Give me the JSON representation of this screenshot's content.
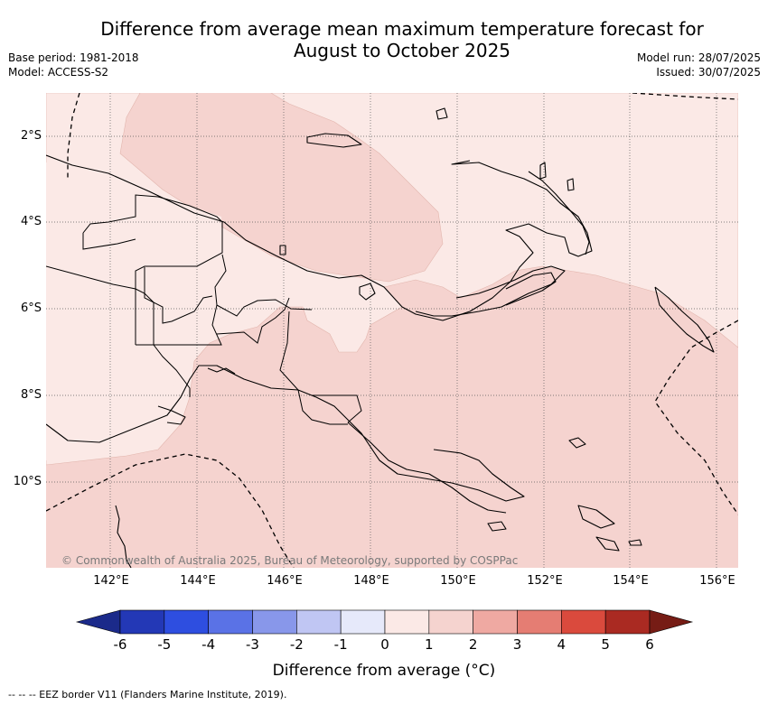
{
  "header": {
    "title_line1": "Difference from average mean maximum temperature forecast for",
    "title_line2": "August to October 2025",
    "base_period": "Base period: 1981-2018",
    "model": "Model: ACCESS-S2",
    "model_run": "Model run: 28/07/2025",
    "issued": "Issued: 30/07/2025"
  },
  "map": {
    "lat_labels": [
      "2°S",
      "4°S",
      "6°S",
      "8°S",
      "10°S"
    ],
    "lon_labels": [
      "142°E",
      "144°E",
      "146°E",
      "148°E",
      "150°E",
      "152°E",
      "154°E",
      "156°E"
    ],
    "copyright": "© Commonwealth of Australia 2025, Bureau of Meteorology, supported by COSPPac",
    "field_colors": {
      "anomaly_0_1": "#fbe9e6",
      "anomaly_1_2": "#f5d3cf"
    },
    "land_outline_color": "#000000"
  },
  "colorbar": {
    "ticks": [
      "-6",
      "-5",
      "-4",
      "-3",
      "-2",
      "-1",
      "0",
      "1",
      "2",
      "3",
      "4",
      "5",
      "6"
    ],
    "colors": [
      "#1b2a8a",
      "#2338b6",
      "#2e4ee0",
      "#5a72e6",
      "#8897ea",
      "#c0c6f3",
      "#e6e9fa",
      "#fbe9e6",
      "#f5d3cf",
      "#efa9a2",
      "#e57d73",
      "#da4a3d",
      "#aa2a22",
      "#761c15"
    ],
    "label": "Difference from average (°C)"
  },
  "footer": {
    "legend": "-- -- -- EEZ border V11 (Flanders Marine Institute, 2019)."
  }
}
